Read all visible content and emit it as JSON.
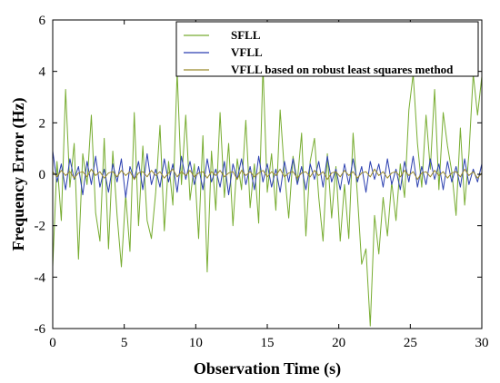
{
  "chart_data": {
    "type": "line",
    "title": "",
    "xlabel": "Observation Time (s)",
    "ylabel": "Frequency Error (Hz)",
    "xlim": [
      0,
      30
    ],
    "ylim": [
      -6,
      6
    ],
    "xticks": [
      0,
      5,
      10,
      15,
      20,
      25,
      30
    ],
    "yticks": [
      -6,
      -4,
      -2,
      0,
      2,
      4,
      6
    ],
    "grid": false,
    "legend_position": "top-right",
    "series": [
      {
        "name": "SFLL",
        "color": "#77ac30",
        "x": [
          0,
          0.3,
          0.6,
          0.9,
          1.2,
          1.5,
          1.8,
          2.1,
          2.4,
          2.7,
          3.0,
          3.3,
          3.6,
          3.9,
          4.2,
          4.5,
          4.8,
          5.1,
          5.4,
          5.7,
          6.0,
          6.3,
          6.6,
          6.9,
          7.2,
          7.5,
          7.8,
          8.1,
          8.4,
          8.7,
          9.0,
          9.3,
          9.6,
          9.9,
          10.2,
          10.5,
          10.8,
          11.1,
          11.4,
          11.7,
          12.0,
          12.3,
          12.6,
          12.9,
          13.2,
          13.5,
          13.8,
          14.1,
          14.4,
          14.7,
          15.0,
          15.3,
          15.6,
          15.9,
          16.2,
          16.5,
          16.8,
          17.1,
          17.4,
          17.7,
          18.0,
          18.3,
          18.6,
          18.9,
          19.2,
          19.5,
          19.8,
          20.1,
          20.4,
          20.7,
          21.0,
          21.3,
          21.6,
          21.9,
          22.2,
          22.5,
          22.8,
          23.1,
          23.4,
          23.7,
          24.0,
          24.3,
          24.6,
          24.9,
          25.2,
          25.5,
          25.8,
          26.1,
          26.4,
          26.7,
          27.0,
          27.3,
          27.6,
          27.9,
          28.2,
          28.5,
          28.8,
          29.1,
          29.4,
          29.7,
          30.0
        ],
        "values": [
          -3.6,
          0.5,
          -1.8,
          3.3,
          -0.5,
          1.2,
          -3.3,
          0.8,
          -0.4,
          2.3,
          -1.5,
          -2.6,
          1.4,
          -2.9,
          0.9,
          -1.6,
          -3.6,
          -0.8,
          -3.0,
          2.4,
          -2.0,
          1.1,
          -1.8,
          -2.5,
          -0.7,
          1.9,
          -2.2,
          0.5,
          -1.2,
          4.0,
          -0.4,
          2.3,
          -1.0,
          0.4,
          -2.5,
          1.5,
          -3.8,
          0.9,
          -1.4,
          2.4,
          -0.9,
          1.2,
          -2.0,
          0.6,
          -0.6,
          2.1,
          -1.3,
          0.4,
          -1.9,
          4.2,
          -0.7,
          0.8,
          -1.4,
          2.5,
          0.1,
          -1.7,
          0.7,
          -0.3,
          1.6,
          -2.4,
          0.5,
          1.4,
          -0.9,
          -2.6,
          0.8,
          -1.7,
          0.3,
          -2.6,
          -0.4,
          -2.5,
          1.6,
          -0.8,
          -3.5,
          -2.9,
          -5.9,
          -1.6,
          -3.1,
          -0.9,
          -2.4,
          -0.3,
          -1.8,
          0.4,
          -0.9,
          2.5,
          3.9,
          1.2,
          -0.5,
          2.3,
          0.2,
          3.3,
          -0.6,
          2.4,
          1.1,
          0.1,
          -1.6,
          1.8,
          -1.2,
          0.8,
          3.9,
          2.3,
          3.8
        ]
      },
      {
        "name": "VFLL",
        "color": "#2b3fb0",
        "x": [
          0,
          0.3,
          0.6,
          0.9,
          1.2,
          1.5,
          1.8,
          2.1,
          2.4,
          2.7,
          3.0,
          3.3,
          3.6,
          3.9,
          4.2,
          4.5,
          4.8,
          5.1,
          5.4,
          5.7,
          6.0,
          6.3,
          6.6,
          6.9,
          7.2,
          7.5,
          7.8,
          8.1,
          8.4,
          8.7,
          9.0,
          9.3,
          9.6,
          9.9,
          10.2,
          10.5,
          10.8,
          11.1,
          11.4,
          11.7,
          12.0,
          12.3,
          12.6,
          12.9,
          13.2,
          13.5,
          13.8,
          14.1,
          14.4,
          14.7,
          15.0,
          15.3,
          15.6,
          15.9,
          16.2,
          16.5,
          16.8,
          17.1,
          17.4,
          17.7,
          18.0,
          18.3,
          18.6,
          18.9,
          19.2,
          19.5,
          19.8,
          20.1,
          20.4,
          20.7,
          21.0,
          21.3,
          21.6,
          21.9,
          22.2,
          22.5,
          22.8,
          23.1,
          23.4,
          23.7,
          24.0,
          24.3,
          24.6,
          24.9,
          25.2,
          25.5,
          25.8,
          26.1,
          26.4,
          26.7,
          27.0,
          27.3,
          27.6,
          27.9,
          28.2,
          28.5,
          28.8,
          29.1,
          29.4,
          29.7,
          30.0
        ],
        "values": [
          0.9,
          -0.3,
          0.4,
          -0.6,
          0.6,
          -0.2,
          0.3,
          -0.8,
          0.5,
          -0.4,
          0.7,
          -0.5,
          0.2,
          -0.7,
          0.4,
          -0.3,
          0.6,
          -0.9,
          0.3,
          -0.2,
          0.5,
          -0.6,
          0.8,
          -0.4,
          0.2,
          -0.5,
          0.6,
          -0.3,
          0.4,
          -0.7,
          0.7,
          -0.2,
          0.5,
          -0.4,
          0.3,
          -0.6,
          0.6,
          -0.3,
          0.2,
          -0.5,
          0.5,
          -0.8,
          0.4,
          -0.2,
          0.6,
          -0.4,
          0.3,
          -0.6,
          0.7,
          -0.3,
          0.4,
          -0.5,
          0.2,
          -0.7,
          0.5,
          -0.3,
          0.6,
          -0.4,
          0.3,
          -0.6,
          0.4,
          -0.2,
          0.5,
          -0.5,
          0.7,
          -0.3,
          0.2,
          -0.6,
          0.4,
          -0.4,
          0.6,
          -0.3,
          0.3,
          -0.7,
          0.5,
          -0.2,
          0.4,
          -0.5,
          0.6,
          -0.4,
          0.2,
          -0.6,
          0.5,
          -0.3,
          0.7,
          -0.5,
          0.3,
          -0.4,
          0.6,
          -0.2,
          0.4,
          -0.6,
          0.5,
          -0.3,
          0.3,
          -0.5,
          0.6,
          -0.4,
          0.2,
          -0.3,
          0.4
        ]
      },
      {
        "name": "VFLL based on robust least squares method",
        "color": "#9a8a2c",
        "x": [
          0,
          0.3,
          0.6,
          0.9,
          1.2,
          1.5,
          1.8,
          2.1,
          2.4,
          2.7,
          3.0,
          3.3,
          3.6,
          3.9,
          4.2,
          4.5,
          4.8,
          5.1,
          5.4,
          5.7,
          6.0,
          6.3,
          6.6,
          6.9,
          7.2,
          7.5,
          7.8,
          8.1,
          8.4,
          8.7,
          9.0,
          9.3,
          9.6,
          9.9,
          10.2,
          10.5,
          10.8,
          11.1,
          11.4,
          11.7,
          12.0,
          12.3,
          12.6,
          12.9,
          13.2,
          13.5,
          13.8,
          14.1,
          14.4,
          14.7,
          15.0,
          15.3,
          15.6,
          15.9,
          16.2,
          16.5,
          16.8,
          17.1,
          17.4,
          17.7,
          18.0,
          18.3,
          18.6,
          18.9,
          19.2,
          19.5,
          19.8,
          20.1,
          20.4,
          20.7,
          21.0,
          21.3,
          21.6,
          21.9,
          22.2,
          22.5,
          22.8,
          23.1,
          23.4,
          23.7,
          24.0,
          24.3,
          24.6,
          24.9,
          25.2,
          25.5,
          25.8,
          26.1,
          26.4,
          26.7,
          27.0,
          27.3,
          27.6,
          27.9,
          28.2,
          28.5,
          28.8,
          29.1,
          29.4,
          29.7,
          30.0
        ],
        "values": [
          0.1,
          -0.1,
          0.15,
          -0.05,
          0.1,
          -0.15,
          0.05,
          0.1,
          -0.1,
          0.2,
          -0.05,
          0.1,
          -0.15,
          0.05,
          0.1,
          -0.1,
          0.15,
          -0.05,
          0.1,
          -0.2,
          0.05,
          0.1,
          -0.1,
          0.15,
          -0.05,
          0.1,
          -0.15,
          0.05,
          0.2,
          -0.1,
          0.1,
          -0.05,
          0.15,
          -0.1,
          0.05,
          0.1,
          -0.15,
          0.1,
          -0.05,
          0.15,
          -0.1,
          0.05,
          0.1,
          -0.2,
          0.15,
          -0.05,
          0.1,
          -0.1,
          0.05,
          0.15,
          -0.1,
          0.1,
          -0.05,
          0.2,
          -0.1,
          0.05,
          0.1,
          -0.15,
          0.05,
          0.1,
          -0.1,
          0.15,
          -0.05,
          0.1,
          -0.2,
          0.05,
          0.1,
          -0.1,
          0.15,
          -0.05,
          0.1,
          -0.15,
          0.05,
          0.1,
          -0.1,
          0.2,
          -0.05,
          0.1,
          -0.15,
          0.05,
          0.1,
          -0.1,
          0.15,
          -0.05,
          0.1,
          -0.2,
          0.05,
          0.1,
          -0.1,
          0.15,
          -0.05,
          0.1,
          -0.15,
          0.05,
          0.1,
          -0.1,
          0.2,
          -0.05,
          0.1,
          -0.15,
          0.05
        ]
      }
    ]
  }
}
